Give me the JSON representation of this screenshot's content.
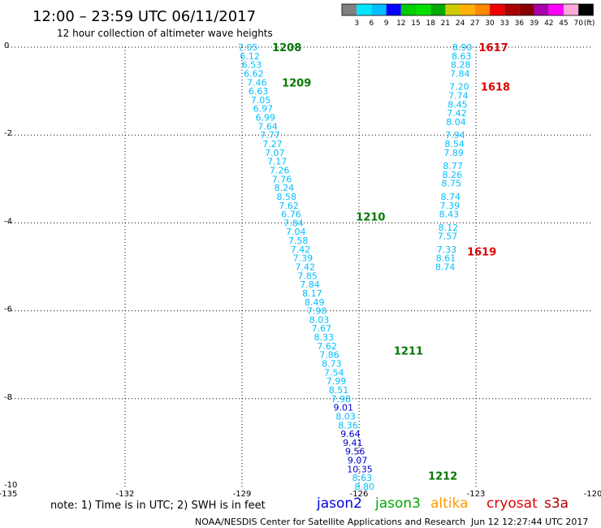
{
  "title": "12:00 – 23:59 UTC 06/11/2017",
  "subtitle": "12 hour collection of altimeter wave heights",
  "colorbar": {
    "labels": [
      "3",
      "6",
      "9",
      "12",
      "15",
      "18",
      "21",
      "24",
      "27",
      "30",
      "33",
      "36",
      "39",
      "42",
      "45",
      "70"
    ],
    "unit": "(ft)",
    "colors": [
      "#808080",
      "#00e5ff",
      "#00bfff",
      "#0000ff",
      "#00cc00",
      "#00e000",
      "#00aa00",
      "#cccc00",
      "#ffb000",
      "#ff8800",
      "#ee0000",
      "#aa0000",
      "#880000",
      "#aa00aa",
      "#ff00ff",
      "#ffaadd",
      "#000000"
    ]
  },
  "note": "note:  1) Time is in UTC;  2) SWH is in feet",
  "footer_center": "NOAA/NESDIS Center for Satellite Applications and Research",
  "footer_right": "Jun 12 12:27:44 UTC 2017",
  "legend": [
    {
      "name": "jason2",
      "color": "#0000dd"
    },
    {
      "name": "jason3",
      "color": "#00aa00"
    },
    {
      "name": "altika",
      "color": "#ff9900"
    },
    {
      "name": "cryosat",
      "color": "#dd0000"
    },
    {
      "name": "s3a",
      "color": "#aa0000"
    }
  ],
  "chart_data": {
    "type": "scatter",
    "xlim": [
      -135,
      -120
    ],
    "ylim": [
      -10,
      0
    ],
    "x_ticks": [
      "-135",
      "-132",
      "-129",
      "-126",
      "-123",
      "-120"
    ],
    "y_ticks": [
      "0",
      "-2",
      "-4",
      "-6",
      "-8",
      "-10"
    ],
    "grid": true,
    "series": [
      {
        "name": "jason3",
        "time_labels": [
          {
            "text": "1208",
            "lon": -127.85,
            "lat": 0.0
          },
          {
            "text": "1209",
            "lon": -127.6,
            "lat": -0.8
          },
          {
            "text": "1210",
            "lon": -125.7,
            "lat": -3.85
          },
          {
            "text": "1211",
            "lon": -124.73,
            "lat": -6.9
          },
          {
            "text": "1212",
            "lon": -123.85,
            "lat": -9.75
          }
        ],
        "points": [
          {
            "lon": -128.85,
            "lat": 0.0,
            "v": "7.05",
            "c": "#00bfff"
          },
          {
            "lon": -128.8,
            "lat": -0.2,
            "v": "6.12",
            "c": "#00bfff"
          },
          {
            "lon": -128.75,
            "lat": -0.4,
            "v": "6.53",
            "c": "#00bfff"
          },
          {
            "lon": -128.7,
            "lat": -0.6,
            "v": "6.62",
            "c": "#00bfff"
          },
          {
            "lon": -128.62,
            "lat": -0.8,
            "v": "7.46",
            "c": "#00bfff"
          },
          {
            "lon": -128.58,
            "lat": -1.0,
            "v": "6.63",
            "c": "#00bfff"
          },
          {
            "lon": -128.52,
            "lat": -1.2,
            "v": "7.05",
            "c": "#00bfff"
          },
          {
            "lon": -128.46,
            "lat": -1.4,
            "v": "6.97",
            "c": "#00bfff"
          },
          {
            "lon": -128.4,
            "lat": -1.6,
            "v": "6.99",
            "c": "#00bfff"
          },
          {
            "lon": -128.34,
            "lat": -1.8,
            "v": "7.64",
            "c": "#00bfff"
          },
          {
            "lon": -128.28,
            "lat": -2.0,
            "v": "7.77",
            "c": "#00bfff"
          },
          {
            "lon": -128.22,
            "lat": -2.2,
            "v": "7.27",
            "c": "#00bfff"
          },
          {
            "lon": -128.16,
            "lat": -2.4,
            "v": "7.07",
            "c": "#00bfff"
          },
          {
            "lon": -128.1,
            "lat": -2.6,
            "v": "7.17",
            "c": "#00bfff"
          },
          {
            "lon": -128.04,
            "lat": -2.8,
            "v": "7.26",
            "c": "#00bfff"
          },
          {
            "lon": -127.98,
            "lat": -3.0,
            "v": "7.76",
            "c": "#00bfff"
          },
          {
            "lon": -127.92,
            "lat": -3.2,
            "v": "8.24",
            "c": "#00bfff"
          },
          {
            "lon": -127.86,
            "lat": -3.4,
            "v": "8.58",
            "c": "#00bfff"
          },
          {
            "lon": -127.8,
            "lat": -3.6,
            "v": "7.62",
            "c": "#00bfff"
          },
          {
            "lon": -127.74,
            "lat": -3.8,
            "v": "6.76",
            "c": "#00bfff"
          },
          {
            "lon": -127.68,
            "lat": -4.0,
            "v": "7.84",
            "c": "#00bfff"
          },
          {
            "lon": -127.62,
            "lat": -4.2,
            "v": "7.04",
            "c": "#00bfff"
          },
          {
            "lon": -127.56,
            "lat": -4.4,
            "v": "7.58",
            "c": "#00bfff"
          },
          {
            "lon": -127.5,
            "lat": -4.6,
            "v": "7.42",
            "c": "#00bfff"
          },
          {
            "lon": -127.44,
            "lat": -4.8,
            "v": "7.39",
            "c": "#00bfff"
          },
          {
            "lon": -127.38,
            "lat": -5.0,
            "v": "7.42",
            "c": "#00bfff"
          },
          {
            "lon": -127.32,
            "lat": -5.2,
            "v": "7.85",
            "c": "#00bfff"
          },
          {
            "lon": -127.26,
            "lat": -5.4,
            "v": "7.84",
            "c": "#00bfff"
          },
          {
            "lon": -127.2,
            "lat": -5.6,
            "v": "8.17",
            "c": "#00bfff"
          },
          {
            "lon": -127.14,
            "lat": -5.8,
            "v": "8.49",
            "c": "#00bfff"
          },
          {
            "lon": -127.08,
            "lat": -6.0,
            "v": "7.98",
            "c": "#00bfff"
          },
          {
            "lon": -127.02,
            "lat": -6.2,
            "v": "8.03",
            "c": "#00bfff"
          },
          {
            "lon": -126.96,
            "lat": -6.4,
            "v": "7.67",
            "c": "#00bfff"
          },
          {
            "lon": -126.9,
            "lat": -6.6,
            "v": "8.33",
            "c": "#00bfff"
          },
          {
            "lon": -126.82,
            "lat": -6.8,
            "v": "7.62",
            "c": "#00bfff"
          },
          {
            "lon": -126.76,
            "lat": -7.0,
            "v": "7.86",
            "c": "#00bfff"
          },
          {
            "lon": -126.7,
            "lat": -7.2,
            "v": "8.73",
            "c": "#00bfff"
          },
          {
            "lon": -126.64,
            "lat": -7.4,
            "v": "7.54",
            "c": "#00bfff"
          },
          {
            "lon": -126.58,
            "lat": -7.6,
            "v": "7.99",
            "c": "#00bfff"
          },
          {
            "lon": -126.52,
            "lat": -7.8,
            "v": "8.51",
            "c": "#00bfff"
          },
          {
            "lon": -126.46,
            "lat": -8.0,
            "v": "7.98",
            "c": "#00bfff"
          },
          {
            "lon": -126.4,
            "lat": -8.2,
            "v": "9.01",
            "c": "#0000cc"
          },
          {
            "lon": -126.34,
            "lat": -8.4,
            "v": "8.03",
            "c": "#00bfff"
          },
          {
            "lon": -126.28,
            "lat": -8.6,
            "v": "8.36",
            "c": "#00bfff"
          },
          {
            "lon": -126.22,
            "lat": -8.8,
            "v": "9.64",
            "c": "#0000cc"
          },
          {
            "lon": -126.16,
            "lat": -9.0,
            "v": "9.41",
            "c": "#0000cc"
          },
          {
            "lon": -126.1,
            "lat": -9.2,
            "v": "9.56",
            "c": "#0000cc"
          },
          {
            "lon": -126.04,
            "lat": -9.4,
            "v": "9.07",
            "c": "#0000cc"
          },
          {
            "lon": -125.98,
            "lat": -9.6,
            "v": "10.35",
            "c": "#0000cc"
          },
          {
            "lon": -125.92,
            "lat": -9.8,
            "v": "8.63",
            "c": "#00bfff"
          },
          {
            "lon": -125.86,
            "lat": -10.0,
            "v": "8.80",
            "c": "#00bfff"
          }
        ]
      },
      {
        "name": "cryosat",
        "time_labels": [
          {
            "text": "1617",
            "lon": -122.55,
            "lat": 0.0
          },
          {
            "text": "1618",
            "lon": -122.5,
            "lat": -0.9
          },
          {
            "text": "1619",
            "lon": -122.85,
            "lat": -4.65
          }
        ],
        "points": [
          {
            "lon": -123.35,
            "lat": 0.0,
            "v": "8.90",
            "c": "#00bfff"
          },
          {
            "lon": -123.37,
            "lat": -0.2,
            "v": "8.63",
            "c": "#00bfff"
          },
          {
            "lon": -123.39,
            "lat": -0.4,
            "v": "8.28",
            "c": "#00bfff"
          },
          {
            "lon": -123.41,
            "lat": -0.6,
            "v": "7.84",
            "c": "#00bfff"
          },
          {
            "lon": -123.43,
            "lat": -0.9,
            "v": "7.20",
            "c": "#00bfff"
          },
          {
            "lon": -123.45,
            "lat": -1.1,
            "v": "7.74",
            "c": "#00bfff"
          },
          {
            "lon": -123.47,
            "lat": -1.3,
            "v": "8.45",
            "c": "#00bfff"
          },
          {
            "lon": -123.49,
            "lat": -1.5,
            "v": "7.42",
            "c": "#00bfff"
          },
          {
            "lon": -123.51,
            "lat": -1.7,
            "v": "8.04",
            "c": "#00bfff"
          },
          {
            "lon": -123.53,
            "lat": -2.0,
            "v": "7.94",
            "c": "#00bfff"
          },
          {
            "lon": -123.55,
            "lat": -2.2,
            "v": "8.54",
            "c": "#00bfff"
          },
          {
            "lon": -123.57,
            "lat": -2.4,
            "v": "7.89",
            "c": "#00bfff"
          },
          {
            "lon": -123.59,
            "lat": -2.7,
            "v": "8.77",
            "c": "#00bfff"
          },
          {
            "lon": -123.61,
            "lat": -2.9,
            "v": "8.26",
            "c": "#00bfff"
          },
          {
            "lon": -123.63,
            "lat": -3.1,
            "v": "8.75",
            "c": "#00bfff"
          },
          {
            "lon": -123.65,
            "lat": -3.4,
            "v": "8.74",
            "c": "#00bfff"
          },
          {
            "lon": -123.67,
            "lat": -3.6,
            "v": "7.39",
            "c": "#00bfff"
          },
          {
            "lon": -123.69,
            "lat": -3.8,
            "v": "8.43",
            "c": "#00bfff"
          },
          {
            "lon": -123.71,
            "lat": -4.1,
            "v": "8.12",
            "c": "#00bfff"
          },
          {
            "lon": -123.73,
            "lat": -4.3,
            "v": "7.57",
            "c": "#00bfff"
          },
          {
            "lon": -123.75,
            "lat": -4.6,
            "v": "7.33",
            "c": "#00bfff"
          },
          {
            "lon": -123.77,
            "lat": -4.8,
            "v": "8.61",
            "c": "#00bfff"
          },
          {
            "lon": -123.79,
            "lat": -5.0,
            "v": "8.74",
            "c": "#00bfff"
          }
        ]
      }
    ]
  }
}
